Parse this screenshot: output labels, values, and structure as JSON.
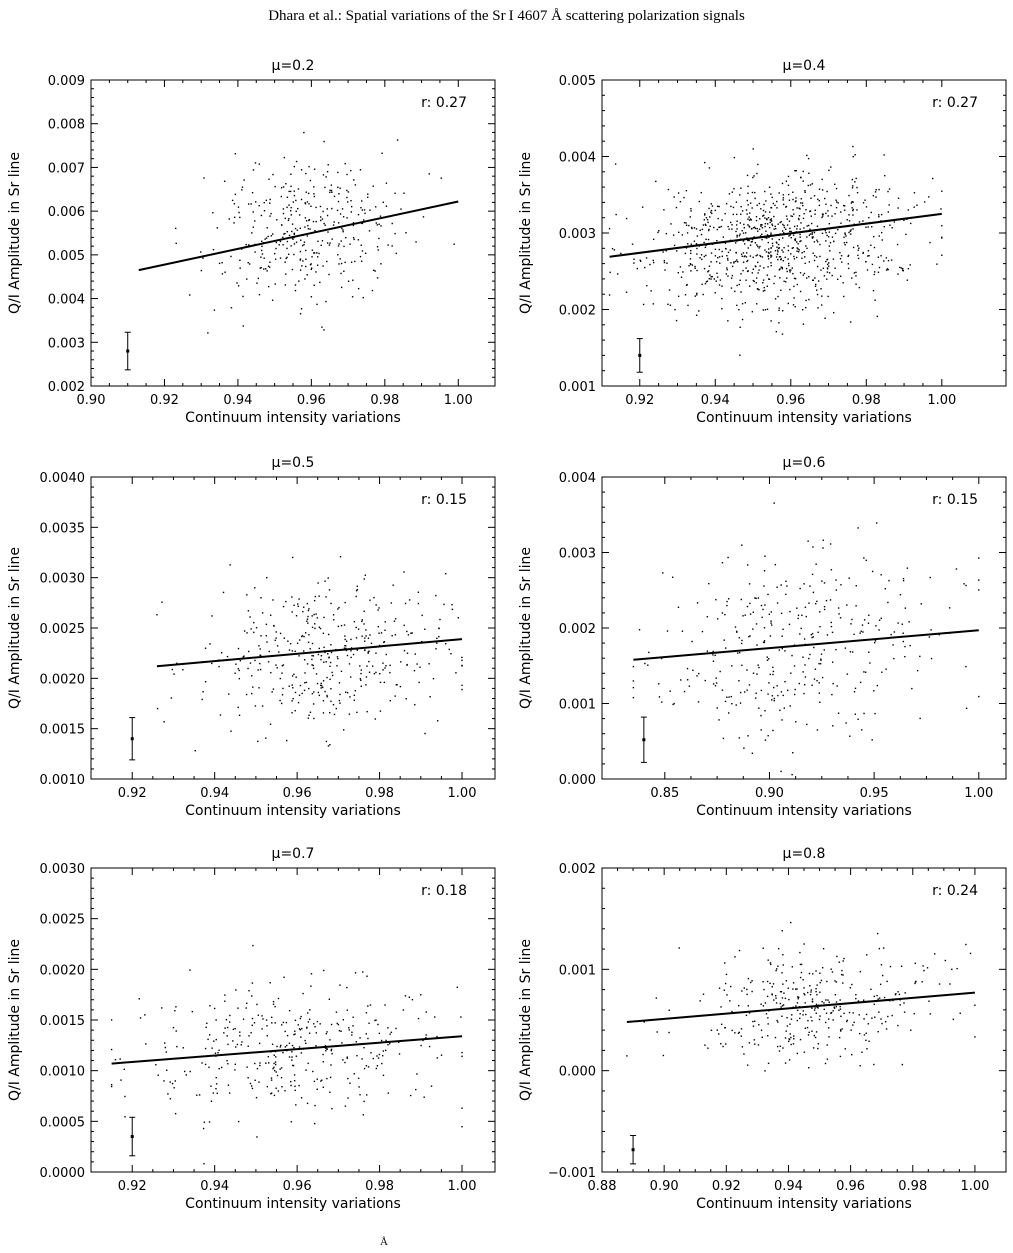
{
  "header": {
    "running_title": "Dhara et al.: Spatial variations of the Sr I 4607 Å  scattering polarization signals"
  },
  "footer": {
    "text": "Å"
  },
  "chart_data": [
    {
      "type": "scatter",
      "title": "μ=0.2",
      "xlabel": "Continuum intensity variations",
      "ylabel": "Q/I Amplitude in Sr line",
      "annotation": "r: 0.27",
      "xlim": [
        0.9,
        1.01
      ],
      "ylim": [
        0.002,
        0.009
      ],
      "xticks": [
        0.9,
        0.92,
        0.94,
        0.96,
        0.98,
        1.0
      ],
      "xtick_labels": [
        "0.90",
        "0.92",
        "0.94",
        "0.96",
        "0.98",
        "1.00"
      ],
      "yticks": [
        0.002,
        0.003,
        0.004,
        0.005,
        0.006,
        0.007,
        0.008,
        0.009
      ],
      "ytick_labels": [
        "0.002",
        "0.003",
        "0.004",
        "0.005",
        "0.006",
        "0.007",
        "0.008",
        "0.009"
      ],
      "scatter": {
        "n": 380,
        "x_range": [
          0.913,
          1.0
        ],
        "x_center": 0.958,
        "x_sigma": 0.013,
        "y_center": 0.0055,
        "y_sigma": 0.00075
      },
      "fit_line": [
        [
          0.913,
          0.00465
        ],
        [
          1.0,
          0.00622
        ]
      ],
      "error_bar": {
        "x": 0.91,
        "y": 0.0028,
        "err": 0.00043
      }
    },
    {
      "type": "scatter",
      "title": "μ=0.4",
      "xlabel": "Continuum intensity variations",
      "ylabel": "Q/I Amplitude in Sr line",
      "annotation": "r: 0.27",
      "xlim": [
        0.91,
        1.017
      ],
      "ylim": [
        0.001,
        0.005
      ],
      "xticks": [
        0.92,
        0.94,
        0.96,
        0.98,
        1.0
      ],
      "xtick_labels": [
        "0.92",
        "0.94",
        "0.96",
        "0.98",
        "1.00"
      ],
      "yticks": [
        0.001,
        0.002,
        0.003,
        0.004,
        0.005
      ],
      "ytick_labels": [
        "0.001",
        "0.002",
        "0.003",
        "0.004",
        "0.005"
      ],
      "scatter": {
        "n": 900,
        "x_range": [
          0.912,
          1.0
        ],
        "x_center": 0.957,
        "x_sigma": 0.017,
        "y_center": 0.0029,
        "y_sigma": 0.00045
      },
      "fit_line": [
        [
          0.912,
          0.00269
        ],
        [
          1.0,
          0.00325
        ]
      ],
      "error_bar": {
        "x": 0.92,
        "y": 0.0014,
        "err": 0.00022
      }
    },
    {
      "type": "scatter",
      "title": "μ=0.5",
      "xlabel": "Continuum intensity variations",
      "ylabel": "Q/I Amplitude in Sr line",
      "annotation": "r: 0.15",
      "xlim": [
        0.91,
        1.008
      ],
      "ylim": [
        0.001,
        0.004
      ],
      "xticks": [
        0.92,
        0.94,
        0.96,
        0.98,
        1.0
      ],
      "xtick_labels": [
        "0.92",
        "0.94",
        "0.96",
        "0.98",
        "1.00"
      ],
      "yticks": [
        0.001,
        0.0015,
        0.002,
        0.0025,
        0.003,
        0.0035,
        0.004
      ],
      "ytick_labels": [
        "0.0010",
        "0.0015",
        "0.0020",
        "0.0025",
        "0.0030",
        "0.0035",
        "0.0040"
      ],
      "scatter": {
        "n": 420,
        "x_range": [
          0.926,
          1.0
        ],
        "x_center": 0.966,
        "x_sigma": 0.015,
        "y_center": 0.00222,
        "y_sigma": 0.00038
      },
      "fit_line": [
        [
          0.926,
          0.00212
        ],
        [
          1.0,
          0.00239
        ]
      ],
      "error_bar": {
        "x": 0.92,
        "y": 0.0014,
        "err": 0.00021
      }
    },
    {
      "type": "scatter",
      "title": "μ=0.6",
      "xlabel": "Continuum intensity variations",
      "ylabel": "Q/I Amplitude in Sr line",
      "annotation": "r: 0.15",
      "xlim": [
        0.82,
        1.013
      ],
      "ylim": [
        0.0,
        0.004
      ],
      "xticks": [
        0.85,
        0.9,
        0.95,
        1.0
      ],
      "xtick_labels": [
        "0.85",
        "0.90",
        "0.95",
        "1.00"
      ],
      "yticks": [
        0.0,
        0.001,
        0.002,
        0.003,
        0.004
      ],
      "ytick_labels": [
        "0.000",
        "0.001",
        "0.002",
        "0.003",
        "0.004"
      ],
      "scatter": {
        "n": 360,
        "x_range": [
          0.835,
          1.0
        ],
        "x_center": 0.915,
        "x_sigma": 0.035,
        "y_center": 0.0018,
        "y_sigma": 0.0006
      },
      "fit_line": [
        [
          0.835,
          0.00158
        ],
        [
          1.0,
          0.00197
        ]
      ],
      "error_bar": {
        "x": 0.84,
        "y": 0.00052,
        "err": 0.0003
      }
    },
    {
      "type": "scatter",
      "title": "μ=0.7",
      "xlabel": "Continuum intensity variations",
      "ylabel": "Q/I Amplitude in Sr line",
      "annotation": "r: 0.18",
      "xlim": [
        0.91,
        1.008
      ],
      "ylim": [
        0.0,
        0.003
      ],
      "xticks": [
        0.92,
        0.94,
        0.96,
        0.98,
        1.0
      ],
      "xtick_labels": [
        "0.92",
        "0.94",
        "0.96",
        "0.98",
        "1.00"
      ],
      "yticks": [
        0.0,
        0.0005,
        0.001,
        0.0015,
        0.002,
        0.0025,
        0.003
      ],
      "ytick_labels": [
        "0.0000",
        "0.0005",
        "0.0010",
        "0.0015",
        "0.0020",
        "0.0025",
        "0.0030"
      ],
      "scatter": {
        "n": 380,
        "x_range": [
          0.915,
          1.0
        ],
        "x_center": 0.958,
        "x_sigma": 0.02,
        "y_center": 0.0012,
        "y_sigma": 0.00032
      },
      "fit_line": [
        [
          0.915,
          0.00107
        ],
        [
          1.0,
          0.00134
        ]
      ],
      "error_bar": {
        "x": 0.92,
        "y": 0.00035,
        "err": 0.00019
      }
    },
    {
      "type": "scatter",
      "title": "μ=0.8",
      "xlabel": "Continuum intensity variations",
      "ylabel": "Q/I Amplitude in Sr line",
      "annotation": "r: 0.24",
      "xlim": [
        0.88,
        1.01
      ],
      "ylim": [
        -0.001,
        0.002
      ],
      "xticks": [
        0.88,
        0.9,
        0.92,
        0.94,
        0.96,
        0.98,
        1.0
      ],
      "xtick_labels": [
        "0.88",
        "0.90",
        "0.92",
        "0.94",
        "0.96",
        "0.98",
        "1.00"
      ],
      "yticks": [
        -0.001,
        0.0,
        0.001,
        0.002
      ],
      "ytick_labels": [
        "−0.001",
        "0.000",
        "0.001",
        "0.002"
      ],
      "scatter": {
        "n": 360,
        "x_range": [
          0.888,
          1.0
        ],
        "x_center": 0.948,
        "x_sigma": 0.02,
        "y_center": 0.00063,
        "y_sigma": 0.00027
      },
      "fit_line": [
        [
          0.888,
          0.00048
        ],
        [
          1.0,
          0.00077
        ]
      ],
      "error_bar": {
        "x": 0.89,
        "y": -0.00078,
        "err": 0.00014
      }
    }
  ]
}
